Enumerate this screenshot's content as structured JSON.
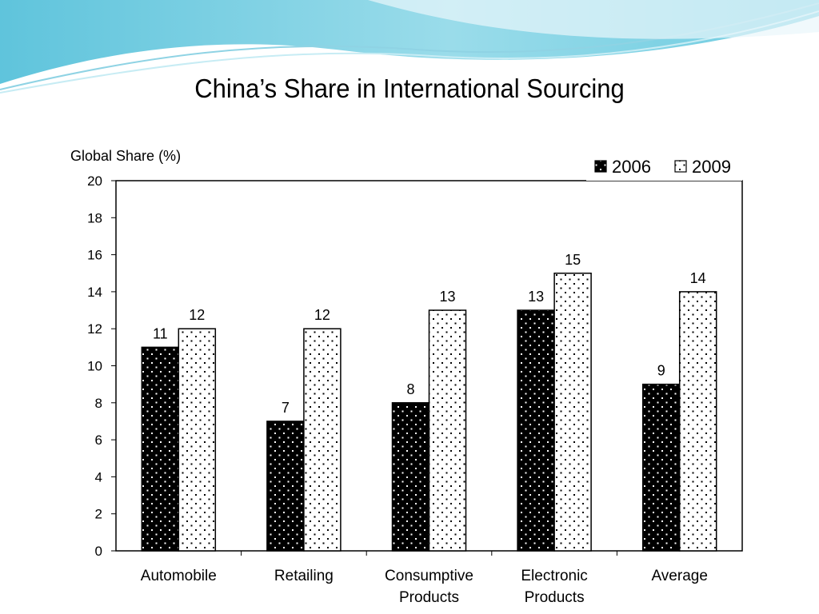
{
  "slide": {
    "title": "China’s Share in International Sourcing"
  },
  "chart_data": {
    "type": "bar",
    "title": "China’s Share in International Sourcing",
    "ylabel": "Global Share (%)",
    "xlabel": "",
    "ylim": [
      0,
      20
    ],
    "yticks": [
      0,
      2,
      4,
      6,
      8,
      10,
      12,
      14,
      16,
      18,
      20
    ],
    "grid": false,
    "legend_position": "top-right",
    "categories": [
      [
        "Automobile"
      ],
      [
        "Retailing"
      ],
      [
        "Consumptive",
        "Products"
      ],
      [
        "Electronic",
        "Products"
      ],
      [
        "Average"
      ]
    ],
    "series": [
      {
        "name": "2006",
        "values": [
          11,
          7,
          8,
          13,
          9
        ],
        "fill": "#000000",
        "dots": "#ffffff"
      },
      {
        "name": "2009",
        "values": [
          12,
          12,
          13,
          15,
          14
        ],
        "fill": "#ffffff",
        "dots": "#000000"
      }
    ]
  }
}
